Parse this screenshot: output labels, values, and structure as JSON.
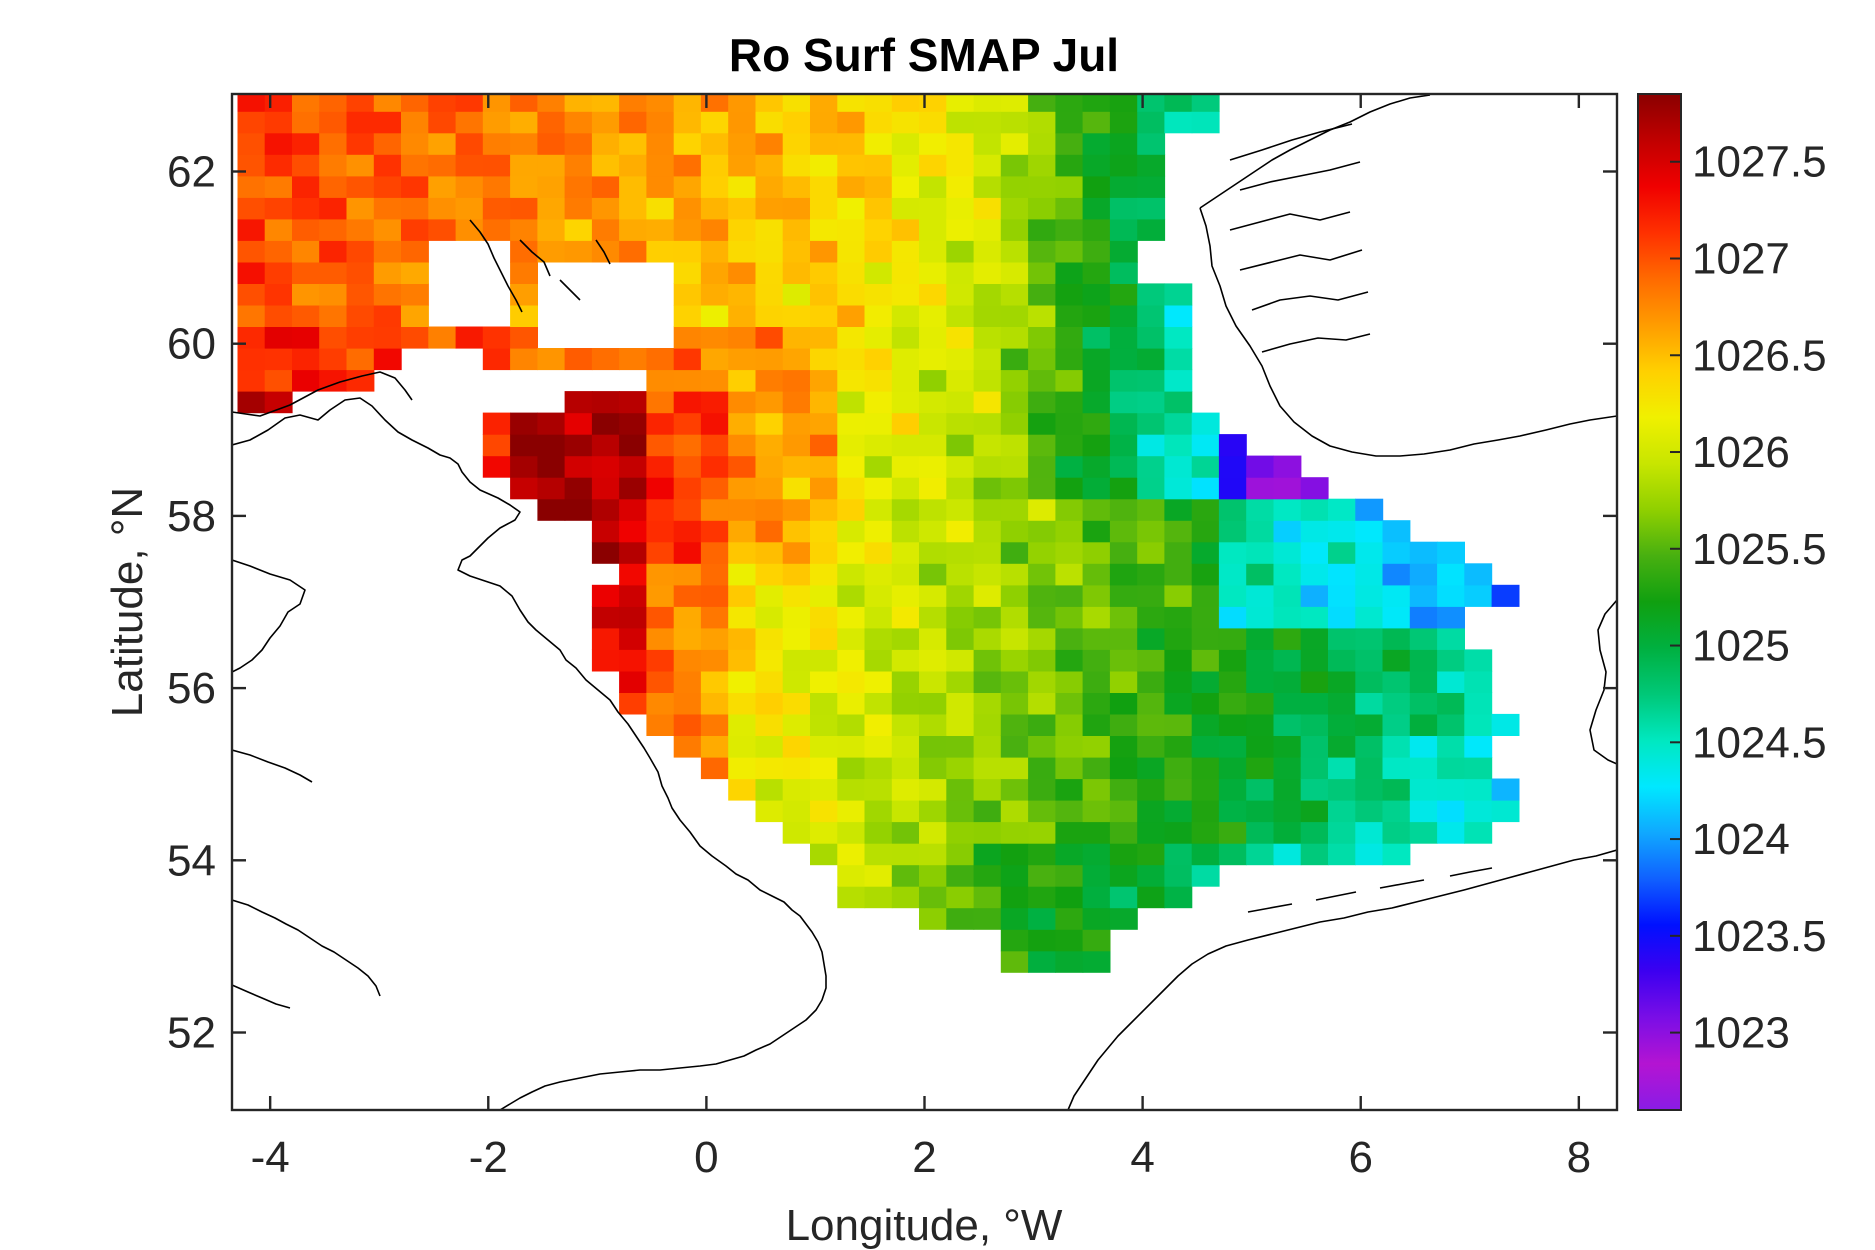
{
  "chart_data": {
    "type": "heatmap",
    "title": "Ro Surf SMAP Jul",
    "xlabel": "Longitude, °W",
    "ylabel": "Latitude, °N",
    "xlim": [
      -4.35,
      8.35
    ],
    "ylim": [
      51.1,
      62.9
    ],
    "x_ticks": [
      -4,
      -2,
      0,
      2,
      4,
      6,
      8
    ],
    "y_ticks": [
      52,
      54,
      56,
      58,
      60,
      62
    ],
    "colorbar": {
      "range": [
        1022.6,
        1027.85
      ],
      "ticks": [
        1023,
        1023.5,
        1024,
        1024.5,
        1025,
        1025.5,
        1026,
        1026.5,
        1027,
        1027.5
      ],
      "colormap": [
        "#8a1ce6",
        "#b414d2",
        "#7a0ee6",
        "#3c00f0",
        "#0010ff",
        "#1060ff",
        "#10a8ff",
        "#00e8ff",
        "#00e8c0",
        "#00c878",
        "#00b040",
        "#10a010",
        "#48b010",
        "#90d000",
        "#c8e600",
        "#f0f000",
        "#ffd000",
        "#ff9c00",
        "#ff6a00",
        "#ff3000",
        "#f00000",
        "#c00000",
        "#8a0000"
      ],
      "position": "right"
    },
    "grid": false,
    "cell_size_deg": 0.25
  }
}
